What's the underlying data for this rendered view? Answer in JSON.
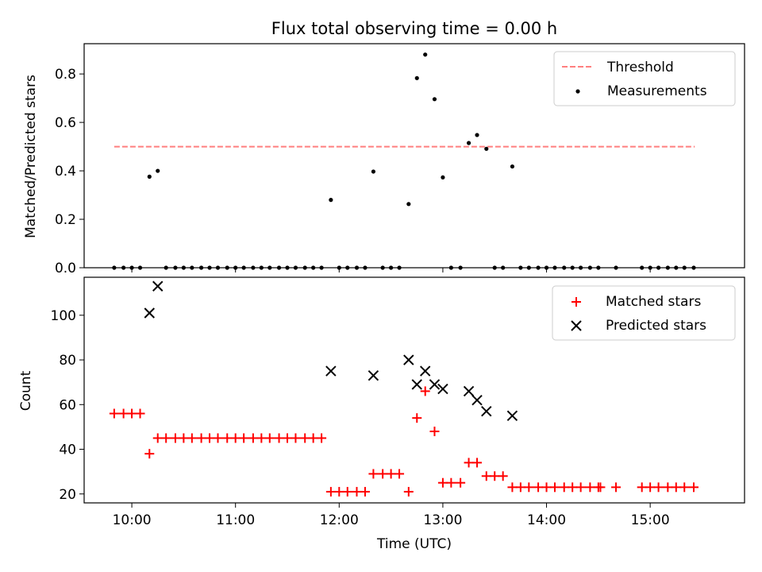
{
  "chart_data": [
    {
      "type": "scatter",
      "title": "Flux total observing time = 0.00 h",
      "xlabel": "",
      "ylabel": "Matched/Predicted stars",
      "xlim": [
        9.54,
        15.91
      ],
      "ylim": [
        0.0,
        0.925
      ],
      "yticks": [
        0.0,
        0.2,
        0.4,
        0.6,
        0.8
      ],
      "ytick_labels": [
        "0.0",
        "0.2",
        "0.4",
        "0.6",
        "0.8"
      ],
      "legend_position": "top-right",
      "series": [
        {
          "name": "Threshold",
          "kind": "line",
          "style": "dashed",
          "color": "#ff7f7f",
          "x": [
            9.83,
            15.43
          ],
          "y": [
            0.5,
            0.5
          ]
        },
        {
          "name": "Measurements",
          "kind": "scatter",
          "marker": "dot",
          "color": "#000000",
          "x": [
            9.83,
            9.92,
            10.0,
            10.08,
            10.17,
            10.25,
            10.33,
            10.42,
            10.5,
            10.58,
            10.67,
            10.75,
            10.83,
            10.92,
            11.0,
            11.08,
            11.17,
            11.25,
            11.33,
            11.42,
            11.5,
            11.58,
            11.67,
            11.75,
            11.83,
            11.92,
            12.0,
            12.08,
            12.17,
            12.25,
            12.33,
            12.42,
            12.5,
            12.58,
            12.67,
            12.75,
            12.83,
            12.92,
            13.0,
            13.08,
            13.17,
            13.25,
            13.33,
            13.42,
            13.5,
            13.58,
            13.67,
            13.75,
            13.83,
            13.92,
            14.0,
            14.08,
            14.17,
            14.25,
            14.33,
            14.42,
            14.5,
            14.67,
            14.92,
            15.0,
            15.08,
            15.17,
            15.25,
            15.33,
            15.42
          ],
          "y": [
            0,
            0,
            0,
            0,
            0.376,
            0.4,
            0,
            0,
            0,
            0,
            0,
            0,
            0,
            0,
            0,
            0,
            0,
            0,
            0,
            0,
            0,
            0,
            0,
            0,
            0,
            0.28,
            0,
            0,
            0,
            0,
            0.397,
            0,
            0,
            0,
            0.263,
            0.783,
            0.88,
            0.696,
            0.373,
            0,
            0,
            0.515,
            0.548,
            0.491,
            0,
            0,
            0.418,
            0,
            0,
            0,
            0,
            0,
            0,
            0,
            0,
            0,
            0,
            0,
            0,
            0,
            0,
            0,
            0,
            0,
            0
          ]
        }
      ]
    },
    {
      "type": "scatter",
      "title": "",
      "xlabel": "Time (UTC)",
      "ylabel": "Count",
      "xlim": [
        9.54,
        15.91
      ],
      "ylim": [
        16,
        117
      ],
      "yticks": [
        20,
        40,
        60,
        80,
        100
      ],
      "ytick_labels": [
        "20",
        "40",
        "60",
        "80",
        "100"
      ],
      "xticks": [
        10,
        11,
        12,
        13,
        14,
        15
      ],
      "xtick_labels": [
        "10:00",
        "11:00",
        "12:00",
        "13:00",
        "14:00",
        "15:00"
      ],
      "legend_position": "top-right",
      "series": [
        {
          "name": "Matched stars",
          "kind": "scatter",
          "marker": "plus",
          "color": "#ff0000",
          "x": [
            9.83,
            9.92,
            10.0,
            10.08,
            10.17,
            10.25,
            10.33,
            10.42,
            10.5,
            10.58,
            10.67,
            10.75,
            10.83,
            10.92,
            11.0,
            11.08,
            11.17,
            11.25,
            11.33,
            11.42,
            11.5,
            11.58,
            11.67,
            11.75,
            11.83,
            11.92,
            12.0,
            12.08,
            12.17,
            12.25,
            12.33,
            12.42,
            12.5,
            12.58,
            12.67,
            12.75,
            12.83,
            12.92,
            13.0,
            13.08,
            13.17,
            13.25,
            13.33,
            13.42,
            13.5,
            13.58,
            13.67,
            13.75,
            13.83,
            13.92,
            14.0,
            14.08,
            14.17,
            14.25,
            14.33,
            14.42,
            14.5,
            14.52,
            14.67,
            14.92,
            15.0,
            15.08,
            15.17,
            15.25,
            15.33,
            15.42
          ],
          "y": [
            56,
            56,
            56,
            56,
            38,
            45,
            45,
            45,
            45,
            45,
            45,
            45,
            45,
            45,
            45,
            45,
            45,
            45,
            45,
            45,
            45,
            45,
            45,
            45,
            45,
            21,
            21,
            21,
            21,
            21,
            29,
            29,
            29,
            29,
            21,
            54,
            66,
            48,
            25,
            25,
            25,
            34,
            34,
            28,
            28,
            28,
            23,
            23,
            23,
            23,
            23,
            23,
            23,
            23,
            23,
            23,
            23,
            23,
            23,
            23,
            23,
            23,
            23,
            23,
            23,
            23
          ]
        },
        {
          "name": "Predicted stars",
          "kind": "scatter",
          "marker": "x",
          "color": "#000000",
          "x": [
            10.17,
            10.25,
            11.92,
            12.33,
            12.67,
            12.75,
            12.83,
            12.92,
            13.0,
            13.25,
            13.33,
            13.42,
            13.67
          ],
          "y": [
            101,
            113,
            75,
            73,
            80,
            69,
            75,
            69,
            67,
            66,
            62,
            57,
            55
          ]
        }
      ]
    }
  ]
}
